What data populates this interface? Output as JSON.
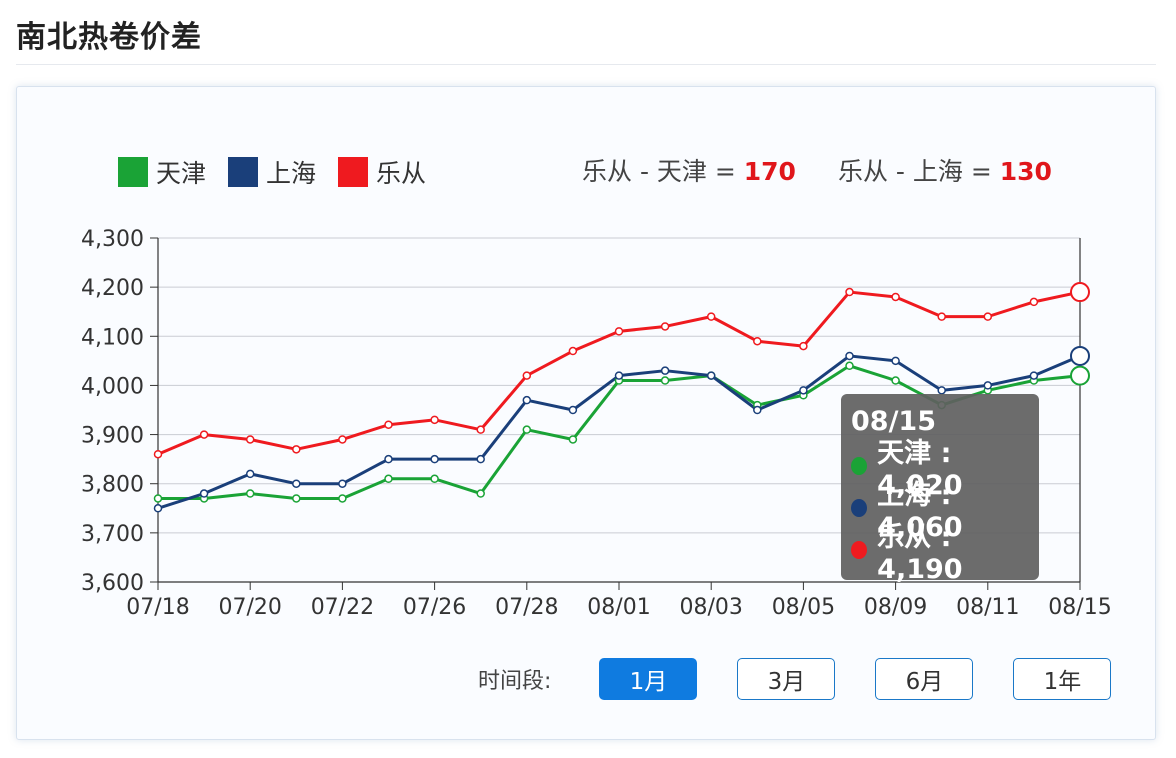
{
  "page_title": "南北热卷价差",
  "legend": [
    {
      "label": "天津",
      "color": "#1aa336"
    },
    {
      "label": "上海",
      "color": "#1a3f7a"
    },
    {
      "label": "乐从",
      "color": "#ef1a1f"
    }
  ],
  "diffs": [
    {
      "label": "乐从 - 天津 =",
      "value": "170"
    },
    {
      "label": "乐从 - 上海 =",
      "value": "130"
    }
  ],
  "tooltip": {
    "date": "08/15",
    "rows": [
      {
        "text": "天津 : 4,020",
        "color": "#1aa336"
      },
      {
        "text": "上海 : 4,060",
        "color": "#1a3f7a"
      },
      {
        "text": "乐从 : 4,190",
        "color": "#ef1a1f"
      }
    ]
  },
  "period": {
    "label": "时间段:",
    "buttons": [
      "1月",
      "3月",
      "6月",
      "1年"
    ],
    "active": "1月"
  },
  "chart_data": {
    "type": "line",
    "x_labels": [
      "07/18",
      "07/20",
      "07/22",
      "07/26",
      "07/28",
      "08/01",
      "08/03",
      "08/05",
      "08/09",
      "08/11",
      "08/15"
    ],
    "ylim": [
      3600,
      4300
    ],
    "y_ticks": [
      "3,600",
      "3,700",
      "3,800",
      "3,900",
      "4,000",
      "4,100",
      "4,200",
      "4,300"
    ],
    "grid": true,
    "legend_position": "top-left",
    "series": [
      {
        "name": "天津",
        "color": "#1aa336",
        "values": [
          3770,
          3770,
          3780,
          3770,
          3770,
          3810,
          3810,
          3780,
          3910,
          3890,
          4010,
          4010,
          4020,
          3960,
          3980,
          4040,
          4010,
          3960,
          3990,
          4010,
          4020
        ]
      },
      {
        "name": "上海",
        "color": "#1a3f7a",
        "values": [
          3750,
          3780,
          3820,
          3800,
          3800,
          3850,
          3850,
          3850,
          3970,
          3950,
          4020,
          4030,
          4020,
          3950,
          3990,
          4060,
          4050,
          3990,
          4000,
          4020,
          4060
        ]
      },
      {
        "name": "乐从",
        "color": "#ef1a1f",
        "values": [
          3860,
          3900,
          3890,
          3870,
          3890,
          3920,
          3930,
          3910,
          4020,
          4070,
          4110,
          4120,
          4140,
          4090,
          4080,
          4190,
          4180,
          4140,
          4140,
          4170,
          4190
        ]
      }
    ]
  }
}
